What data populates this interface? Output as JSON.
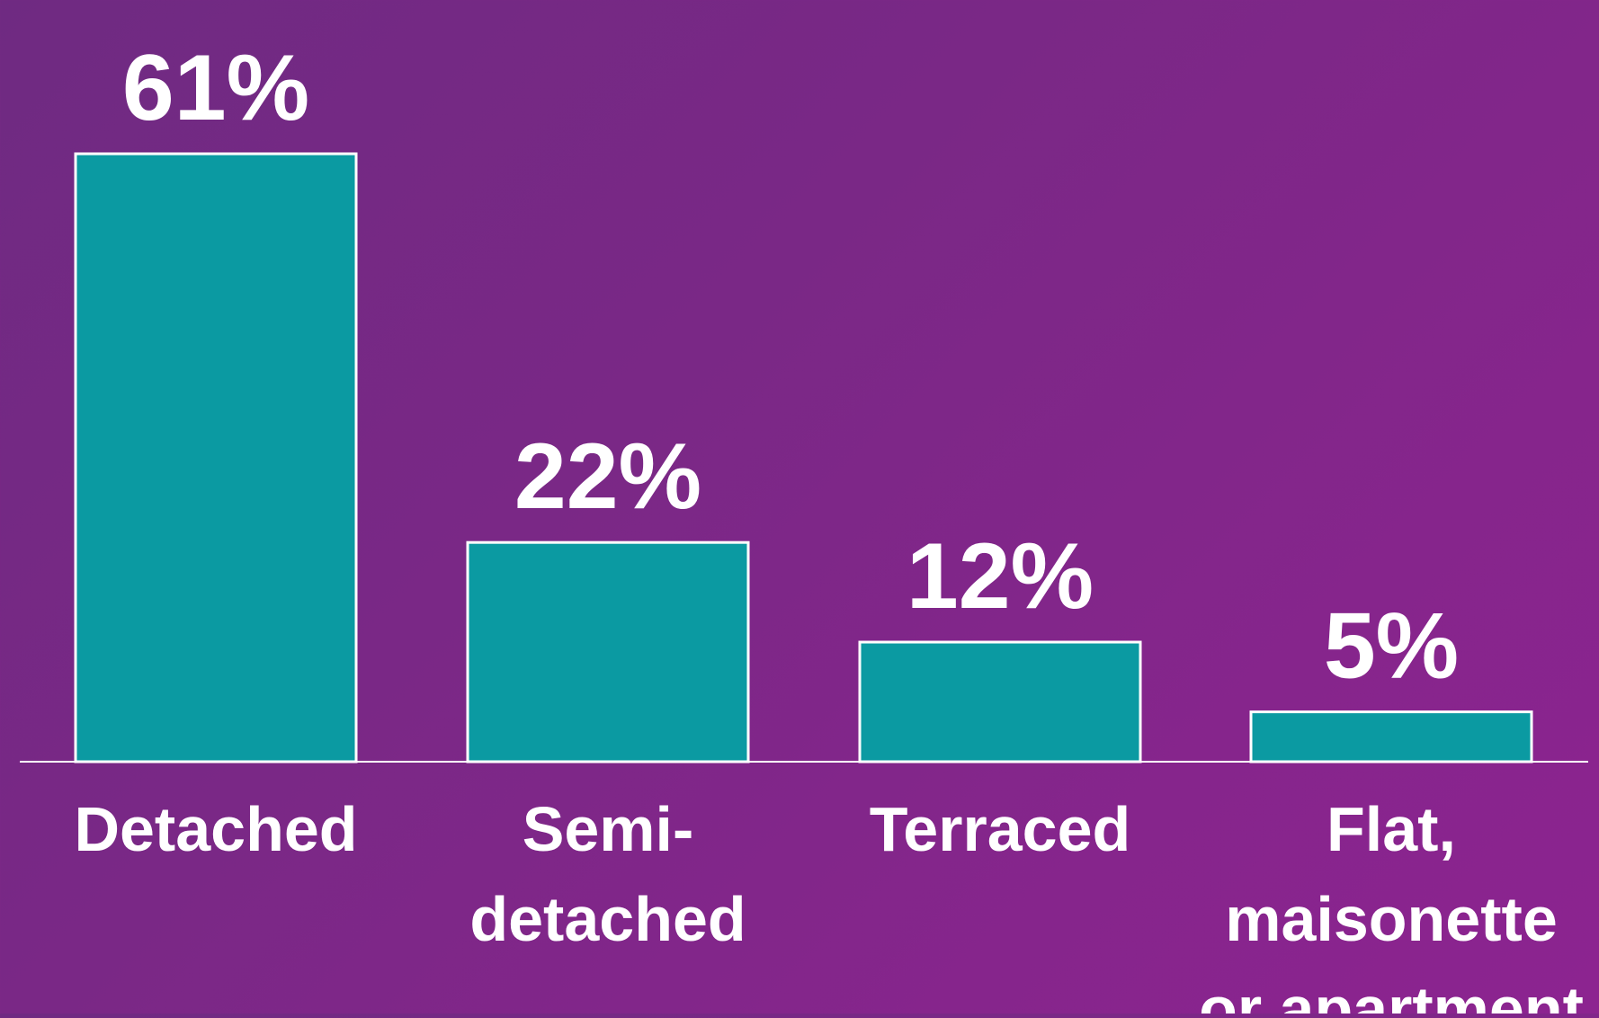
{
  "chart_data": {
    "type": "bar",
    "categories": [
      [
        "Detached"
      ],
      [
        "Semi-",
        "detached"
      ],
      [
        "Terraced"
      ],
      [
        "Flat,",
        "maisonette",
        "or apartment"
      ]
    ],
    "values": [
      61,
      22,
      12,
      5
    ],
    "value_labels": [
      "61%",
      "22%",
      "12%",
      "5%"
    ],
    "ylim": [
      0,
      61
    ],
    "grid": false,
    "legend": "none",
    "title": "",
    "xlabel": "",
    "ylabel": ""
  },
  "colors": {
    "bar_fill": "#0b9aa2",
    "bar_stroke": "#ffffff",
    "axis": "#ffffff",
    "text": "#ffffff"
  }
}
